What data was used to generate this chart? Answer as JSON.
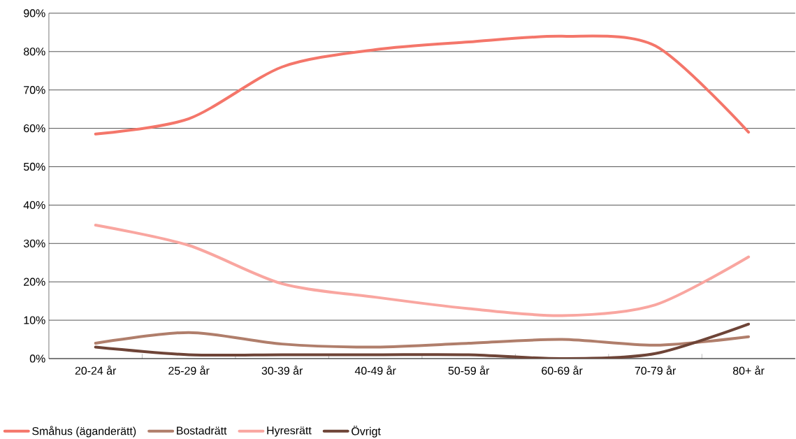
{
  "chart_data": {
    "type": "line",
    "categories": [
      "20-24 år",
      "25-29 år",
      "30-39 år",
      "40-49 år",
      "50-59 år",
      "60-69 år",
      "70-79 år",
      "80+ år"
    ],
    "series": [
      {
        "name": "Småhus (äganderätt)",
        "color": "#f4766a",
        "values": [
          58.5,
          62.5,
          76,
          80.5,
          82.5,
          84,
          81.5,
          59
        ]
      },
      {
        "name": "Bostadrätt",
        "color": "#b07e6b",
        "values": [
          4,
          6.8,
          3.8,
          3,
          4,
          5,
          3.5,
          5.7
        ]
      },
      {
        "name": "Hyresrätt",
        "color": "#f9a6a0",
        "values": [
          34.8,
          29.5,
          19.5,
          16,
          13,
          11.2,
          14,
          26.5
        ]
      },
      {
        "name": "Övrigt",
        "color": "#6e4437",
        "values": [
          3,
          1,
          1,
          1,
          1,
          0,
          1.3,
          9
        ]
      }
    ],
    "ylim": [
      0,
      90
    ],
    "yticks": [
      {
        "value": 0,
        "label": "0%"
      },
      {
        "value": 10,
        "label": "10%"
      },
      {
        "value": 20,
        "label": "20%"
      },
      {
        "value": 30,
        "label": "30%"
      },
      {
        "value": 40,
        "label": "40%"
      },
      {
        "value": 50,
        "label": "50%"
      },
      {
        "value": 60,
        "label": "60%"
      },
      {
        "value": 70,
        "label": "70%"
      },
      {
        "value": 80,
        "label": "80%"
      },
      {
        "value": 90,
        "label": "90%"
      }
    ],
    "grid": "y",
    "legend": "bottom",
    "line_style": "solid"
  }
}
